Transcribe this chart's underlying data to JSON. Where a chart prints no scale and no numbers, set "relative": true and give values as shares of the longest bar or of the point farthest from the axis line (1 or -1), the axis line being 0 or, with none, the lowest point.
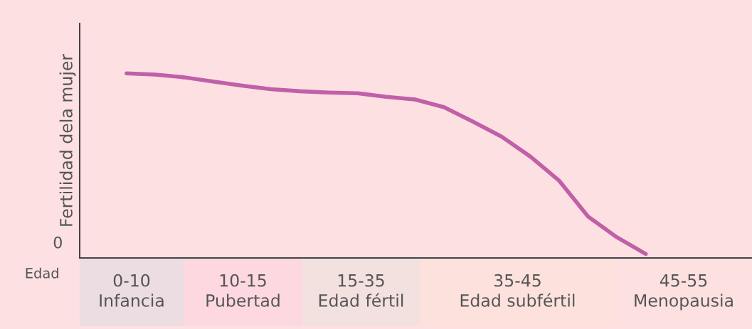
{
  "chart_data": {
    "type": "line",
    "relative": true,
    "xlabel": "Edad",
    "ylabel": "Fertilidad dela mujer",
    "categories": [
      null,
      null,
      null,
      null,
      null,
      null,
      null,
      null,
      null,
      null,
      null,
      null,
      null,
      null,
      null,
      null,
      null,
      null,
      null
    ],
    "series": [
      {
        "color": "#c060a8",
        "values": [
          1.0,
          0.993,
          0.978,
          0.955,
          0.933,
          0.914,
          0.903,
          0.896,
          0.892,
          0.873,
          0.858,
          0.817,
          0.739,
          0.657,
          0.549,
          0.418,
          0.224,
          0.112,
          0.022
        ]
      }
    ],
    "annotations": [
      "0",
      "0-10\nInfancia",
      "10-15\nPubertad",
      "15-35\nEdad fértil",
      "35-45\nEdad subfértil",
      "45-55\nMenopausia"
    ],
    "grid": false,
    "legend": false,
    "marker": "none",
    "line_style": "solid"
  }
}
